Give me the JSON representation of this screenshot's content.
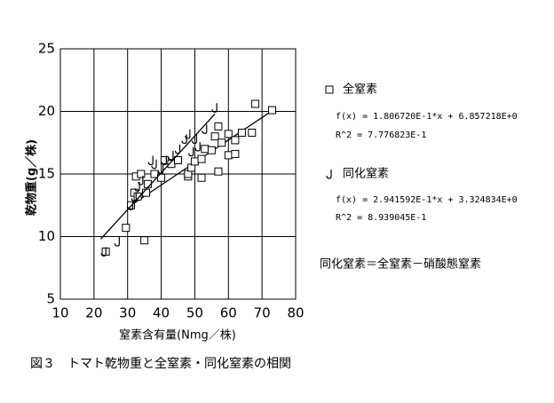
{
  "chart_data": {
    "type": "scatter",
    "xlabel": "窒素含有量(Nmg／株)",
    "ylabel": "乾物重(g／株)",
    "caption": "図３　トマト乾物重と全窒素・同化窒素の相関",
    "note": "同化窒素＝全窒素－硝酸態窒素",
    "xlim": [
      10,
      80
    ],
    "xticks": [
      10,
      20,
      30,
      40,
      50,
      60,
      70,
      80
    ],
    "ylim": [
      5,
      25
    ],
    "yticks": [
      5,
      10,
      15,
      20,
      25
    ],
    "grid": true,
    "series": [
      {
        "name": "全窒素",
        "color": "#000000",
        "marker": "square",
        "equation": "f(x) = 1.806720E-1*x + 6.857218E+0",
        "r2": "R^2 = 7.776823E-1",
        "x": [
          23.5,
          29.5,
          31,
          32,
          32.5,
          33,
          34,
          35,
          35.5,
          36,
          38,
          40,
          41,
          43,
          45,
          48,
          48,
          49,
          50,
          52,
          52,
          53,
          55,
          56,
          57,
          57,
          58,
          60,
          60,
          62,
          62,
          64,
          67,
          68,
          73
        ],
        "values": [
          8.8,
          10.7,
          12.5,
          13.5,
          14.8,
          13.2,
          15.0,
          9.7,
          13.5,
          14.2,
          15.0,
          14.7,
          16.1,
          15.8,
          16.1,
          14.8,
          15.0,
          15.5,
          16.0,
          14.7,
          16.2,
          17.0,
          16.9,
          18.0,
          18.8,
          15.2,
          17.5,
          16.5,
          18.2,
          16.6,
          17.7,
          18.3,
          18.3,
          20.6,
          20.1
        ],
        "trendline": {
          "x": [
            31,
            73
          ],
          "values": [
            12.5,
            20.05
          ]
        }
      },
      {
        "name": "同化窒素",
        "color": "#000000",
        "marker": "J",
        "equation": "f(x) = 2.941592E-1*x + 3.324834E+0",
        "r2": "R^2 = 8.939045E-1",
        "x": [
          23,
          27,
          31,
          32,
          33,
          34,
          37,
          38,
          40,
          41,
          43,
          45,
          47,
          48,
          49,
          50,
          51,
          53,
          56
        ],
        "values": [
          8.8,
          9.6,
          12.5,
          13.2,
          14.0,
          14.5,
          16.1,
          15.8,
          15.4,
          16.1,
          16.5,
          17.0,
          17.8,
          18.2,
          16.8,
          17.8,
          17.2,
          18.6,
          20.3
        ],
        "trendline": {
          "x": [
            22,
            56
          ],
          "values": [
            9.8,
            19.8
          ]
        }
      }
    ]
  }
}
